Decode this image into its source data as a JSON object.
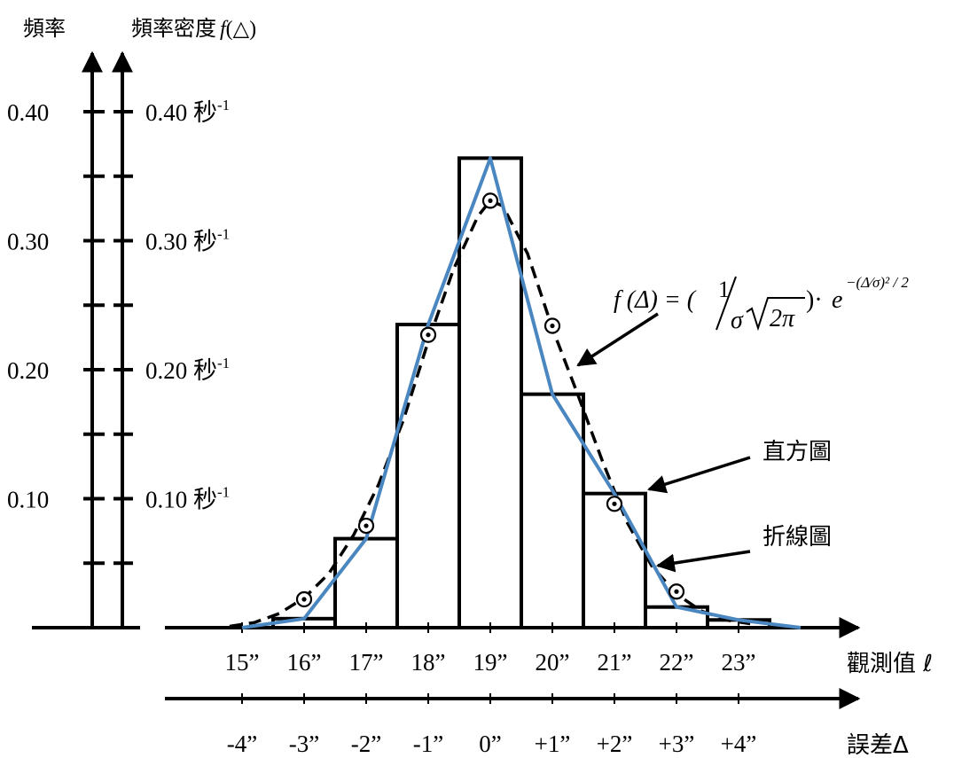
{
  "labels": {
    "freq_axis": "頻率",
    "density_axis_prefix": "頻率密度",
    "density_axis_fn": "f",
    "density_axis_paren_open": "(",
    "density_axis_symbol": "△",
    "density_axis_paren_close": ")",
    "obs_axis": "觀測值 ℓ",
    "err_axis": "誤差Δ",
    "histogram": "直方圖",
    "polygon": "折線圖",
    "unit": "秒",
    "unit_exp": "-1"
  },
  "formula": {
    "lhs": "f (Δ) = (",
    "num": "1",
    "den_sigma": "σ",
    "den_sqrt_content": "2π",
    "dot": ")·",
    "base": "e",
    "exponent": "−(Δ⁄σ)² / 2"
  },
  "colors": {
    "polygon": "#4a86c0",
    "ink": "#000000"
  },
  "chart_data": {
    "type": "bar",
    "title": "",
    "x_obs_ticks": [
      "15”",
      "16”",
      "17”",
      "18”",
      "19”",
      "20”",
      "21”",
      "22”",
      "23”"
    ],
    "x_err_ticks": [
      "-4”",
      "-3”",
      "-2”",
      "-1”",
      "0”",
      "+1”",
      "+2”",
      "+3”",
      "+4”"
    ],
    "x_values": [
      15,
      16,
      17,
      18,
      19,
      20,
      21,
      22,
      23
    ],
    "y_ticks": [
      {
        "value": 0.1,
        "freq": "0.10",
        "density": "0.10"
      },
      {
        "value": 0.2,
        "freq": "0.20",
        "density": "0.20"
      },
      {
        "value": 0.3,
        "freq": "0.30",
        "density": "0.30"
      },
      {
        "value": 0.4,
        "freq": "0.40",
        "density": "0.40"
      }
    ],
    "ylim": [
      0,
      0.4
    ],
    "histogram": {
      "bins": [
        [
          15.5,
          16.5
        ],
        [
          16.5,
          17.5
        ],
        [
          17.5,
          18.5
        ],
        [
          18.5,
          19.5
        ],
        [
          19.5,
          20.5
        ],
        [
          20.5,
          21.5
        ],
        [
          21.5,
          22.5
        ],
        [
          22.5,
          23.5
        ]
      ],
      "values": [
        0.007,
        0.069,
        0.235,
        0.364,
        0.181,
        0.104,
        0.016,
        0.006
      ]
    },
    "polygon": {
      "x": [
        15,
        16,
        17,
        18,
        19,
        20,
        21,
        22,
        23,
        24
      ],
      "y": [
        0.0,
        0.007,
        0.069,
        0.235,
        0.364,
        0.181,
        0.104,
        0.016,
        0.006,
        0.0
      ]
    },
    "normal_curve": {
      "x": [
        14.8,
        15.2,
        15.6,
        16.0,
        16.4,
        16.8,
        17.2,
        17.6,
        18.0,
        18.4,
        18.8,
        19.0,
        19.2,
        19.6,
        20.0,
        20.4,
        20.8,
        21.2,
        21.6,
        22.0,
        22.4,
        22.8,
        23.2
      ],
      "y": [
        0.001,
        0.004,
        0.011,
        0.023,
        0.042,
        0.072,
        0.111,
        0.161,
        0.222,
        0.277,
        0.319,
        0.331,
        0.327,
        0.29,
        0.232,
        0.182,
        0.13,
        0.082,
        0.048,
        0.026,
        0.013,
        0.006,
        0.003
      ]
    },
    "points": {
      "x": [
        16,
        17,
        18,
        19,
        20,
        21,
        22
      ],
      "y": [
        0.022,
        0.079,
        0.227,
        0.331,
        0.234,
        0.096,
        0.028
      ]
    }
  }
}
